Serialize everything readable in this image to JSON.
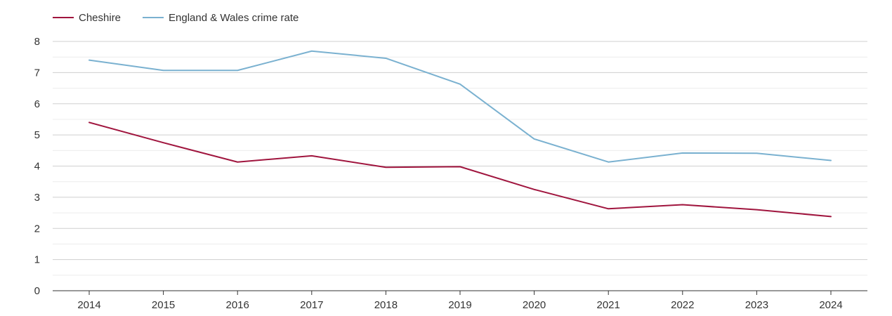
{
  "chart_data": {
    "type": "line",
    "title": "",
    "xlabel": "",
    "ylabel": "",
    "categories": [
      "2014",
      "2015",
      "2016",
      "2017",
      "2018",
      "2019",
      "2020",
      "2021",
      "2022",
      "2023",
      "2024"
    ],
    "ylim": [
      0,
      8
    ],
    "y_ticks": [
      0,
      1,
      2,
      3,
      4,
      5,
      6,
      7,
      8
    ],
    "grid": true,
    "legend_position": "top-left",
    "series": [
      {
        "name": "Cheshire",
        "color": "#a0153e",
        "values": [
          5.4,
          4.75,
          4.13,
          4.33,
          3.96,
          3.98,
          3.25,
          2.63,
          2.76,
          2.6,
          2.38
        ]
      },
      {
        "name": "England & Wales crime rate",
        "color": "#7ab1d0",
        "values": [
          7.4,
          7.07,
          7.07,
          7.69,
          7.46,
          6.63,
          4.87,
          4.13,
          4.42,
          4.41,
          4.18
        ]
      }
    ]
  }
}
